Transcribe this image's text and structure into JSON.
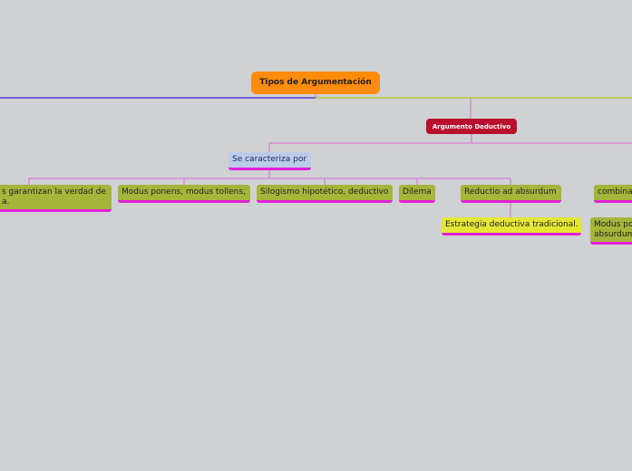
{
  "central": "Tipos de Argumentación",
  "branch": "Argumento Deductivo",
  "characterized": "Se caracteriza por",
  "children": [
    {
      "lines": [
        "s garantizan la verdad de",
        "a."
      ]
    },
    {
      "lines": [
        "Modus ponens, modus tollens,"
      ]
    },
    {
      "lines": [
        "Silogismo hipotético, deductivo"
      ]
    },
    {
      "lines": [
        "Dilema"
      ]
    },
    {
      "lines": [
        "Reductio ad absurdum"
      ]
    }
  ],
  "sub_child": "Estrategia deductiva tradicional.",
  "right_nodes": [
    {
      "lines": [
        "combina"
      ]
    },
    {
      "lines": [
        "Modus po",
        "absurdum"
      ]
    }
  ]
}
